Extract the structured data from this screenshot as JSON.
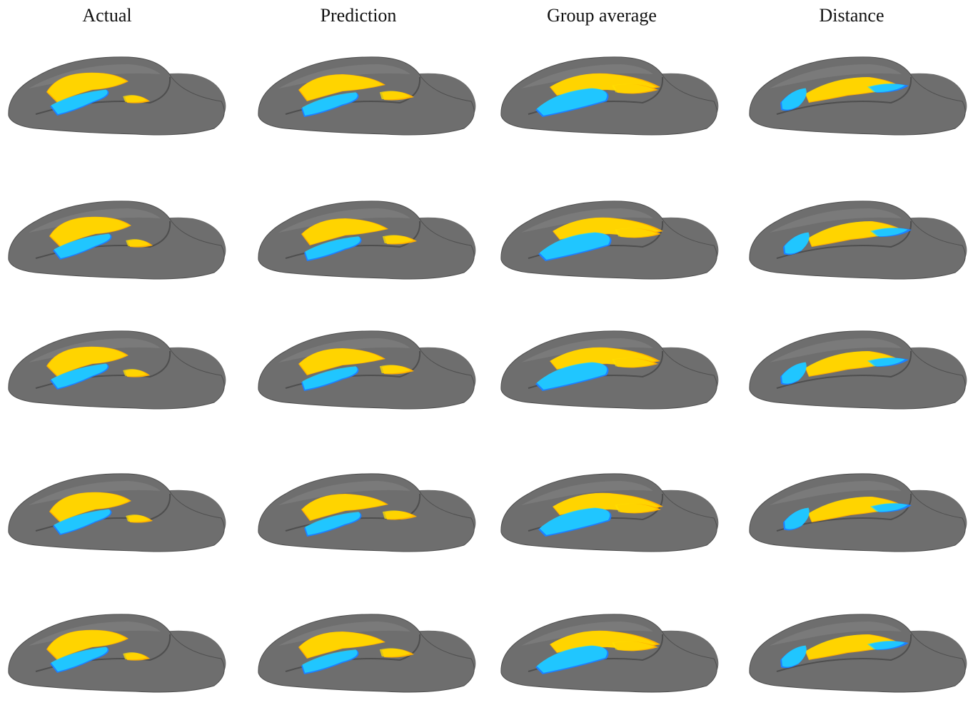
{
  "figure": {
    "columns": [
      {
        "key": "actual",
        "title": "Actual"
      },
      {
        "key": "prediction",
        "title": "Prediction"
      },
      {
        "key": "group_average",
        "title": "Group average"
      },
      {
        "key": "distance",
        "title": "Distance"
      }
    ],
    "row_count": 5,
    "colors": {
      "brain_surface": "#6e6e6e",
      "brain_surface_dark": "#4e4e4e",
      "brain_highlight": "#8a8a8a",
      "positive_activation": "#ffb000",
      "positive_core": "#ffe000",
      "negative_activation": "#1e7fff",
      "negative_core": "#22ddff"
    }
  }
}
